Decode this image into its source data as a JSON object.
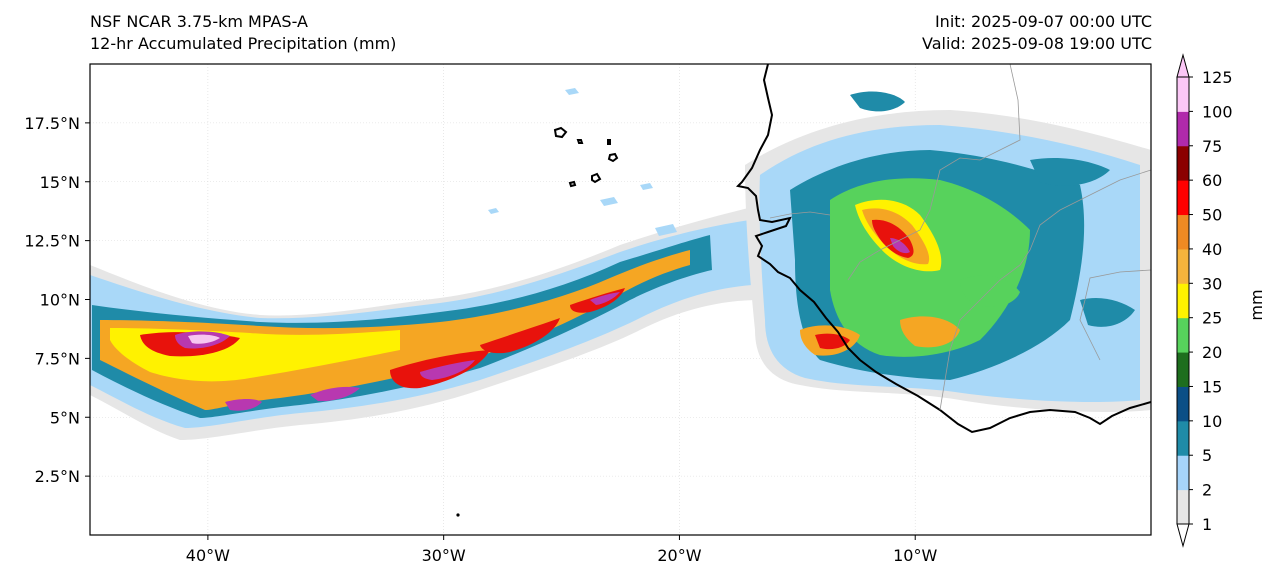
{
  "header": {
    "model_title": "NSF NCAR 3.75-km MPAS-A",
    "field_title": "12-hr Accumulated Precipitation (mm)",
    "init_time": "Init: 2025-09-07 00:00 UTC",
    "valid_time": "Valid: 2025-09-08 19:00 UTC"
  },
  "map": {
    "lon_range": [
      -45,
      0
    ],
    "lat_range": [
      0,
      20
    ],
    "lon_ticks": [
      {
        "value": -40,
        "label": "40°W"
      },
      {
        "value": -30,
        "label": "30°W"
      },
      {
        "value": -20,
        "label": "20°W"
      },
      {
        "value": -10,
        "label": "10°W"
      }
    ],
    "lat_ticks": [
      {
        "value": 17.5,
        "label": "17.5°N"
      },
      {
        "value": 15,
        "label": "15°N"
      },
      {
        "value": 12.5,
        "label": "12.5°N"
      },
      {
        "value": 10,
        "label": "10°N"
      },
      {
        "value": 7.5,
        "label": "7.5°N"
      },
      {
        "value": 5,
        "label": "5°N"
      },
      {
        "value": 2.5,
        "label": "2.5°N"
      }
    ],
    "colors": {
      "light_gray": "#e6e6e6",
      "light_blue": "#a9d8f8",
      "teal": "#1f8ba8",
      "dark_blue": "#0b4f86",
      "dark_green": "#1e6e1e",
      "light_green": "#57d25c",
      "yellow": "#fff200",
      "orange": "#f5a623",
      "red": "#e8120c",
      "magenta": "#b838b0",
      "pink": "#f7c6f0"
    }
  },
  "colorbar": {
    "unit_label": "mm",
    "levels": [
      {
        "label": "1",
        "color": "#e6e6e6"
      },
      {
        "label": "2",
        "color": "#a6d4fa"
      },
      {
        "label": "5",
        "color": "#1f8ba8"
      },
      {
        "label": "10",
        "color": "#0b4f86"
      },
      {
        "label": "15",
        "color": "#1e6e1e"
      },
      {
        "label": "20",
        "color": "#57d25c"
      },
      {
        "label": "25",
        "color": "#fff200"
      },
      {
        "label": "30",
        "color": "#f5b43c"
      },
      {
        "label": "40",
        "color": "#ef8a23"
      },
      {
        "label": "50",
        "color": "#ff0000"
      },
      {
        "label": "60",
        "color": "#8b0000"
      },
      {
        "label": "75",
        "color": "#b02aab"
      },
      {
        "label": "100",
        "color": "#fbc7f6"
      },
      {
        "label": "125",
        "color": ""
      }
    ]
  }
}
